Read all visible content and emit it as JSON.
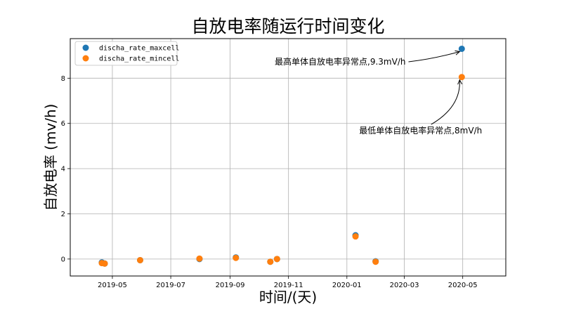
{
  "chart_data": {
    "type": "scatter",
    "title": "自放电率随运行时间变化",
    "xlabel": "时间/(天)",
    "ylabel": "自放电率 (mv/h)",
    "xlim": [
      "2019-03-18",
      "2020-06-15"
    ],
    "ylim": [
      -0.75,
      9.75
    ],
    "x_ticks": [
      "2019-05",
      "2019-07",
      "2019-09",
      "2019-11",
      "2020-01",
      "2020-03",
      "2020-05"
    ],
    "y_ticks": [
      0,
      2,
      4,
      6,
      8
    ],
    "grid": true,
    "legend_position": "top-left",
    "series": [
      {
        "name": "discha_rate_maxcell",
        "color": "#1f77b4",
        "points": [
          {
            "x": "2019-04-20",
            "y": -0.15
          },
          {
            "x": "2019-04-23",
            "y": -0.2
          },
          {
            "x": "2019-05-30",
            "y": -0.05
          },
          {
            "x": "2019-07-31",
            "y": 0.0
          },
          {
            "x": "2019-09-07",
            "y": 0.07
          },
          {
            "x": "2019-10-13",
            "y": -0.12
          },
          {
            "x": "2019-10-20",
            "y": 0.0
          },
          {
            "x": "2020-01-10",
            "y": 1.05
          },
          {
            "x": "2020-01-31",
            "y": -0.1
          },
          {
            "x": "2020-04-30",
            "y": 9.3
          }
        ]
      },
      {
        "name": "discha_rate_mincell",
        "color": "#ff7f0e",
        "points": [
          {
            "x": "2019-04-20",
            "y": -0.18
          },
          {
            "x": "2019-04-23",
            "y": -0.2
          },
          {
            "x": "2019-05-30",
            "y": -0.05
          },
          {
            "x": "2019-07-31",
            "y": 0.02
          },
          {
            "x": "2019-09-07",
            "y": 0.05
          },
          {
            "x": "2019-10-13",
            "y": -0.12
          },
          {
            "x": "2019-10-20",
            "y": 0.0
          },
          {
            "x": "2020-01-10",
            "y": 1.0
          },
          {
            "x": "2020-01-31",
            "y": -0.12
          },
          {
            "x": "2020-04-30",
            "y": 8.05
          }
        ]
      }
    ],
    "annotations": [
      {
        "text": "最高单体自放电率异常点,9.3mV/h",
        "target": {
          "x": "2020-04-30",
          "y": 9.3
        },
        "anchor_text": {
          "x": "2019-12-25",
          "y": 8.6
        }
      },
      {
        "text": "最低单体自放电率异常点,8mV/h",
        "target": {
          "x": "2020-04-30",
          "y": 8.05
        },
        "anchor_text": {
          "x": "2020-03-18",
          "y": 5.55
        }
      }
    ]
  }
}
